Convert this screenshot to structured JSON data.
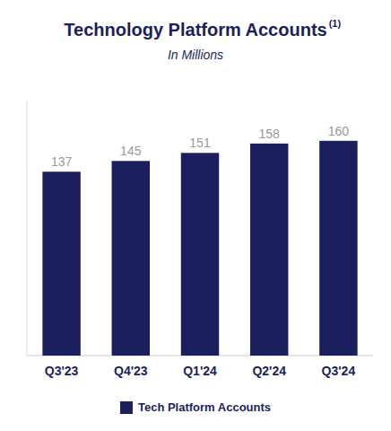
{
  "chart_data": {
    "type": "bar",
    "title": "Technology Platform Accounts",
    "subtitle": "In Millions",
    "annotations": [
      "(1)"
    ],
    "categories": [
      "Q3'23",
      "Q4'23",
      "Q1'24",
      "Q2'24",
      "Q3'24"
    ],
    "series": [
      {
        "name": "Tech Platform Accounts",
        "color": "#1b1f5e",
        "values": [
          137,
          145,
          151,
          158,
          160
        ]
      }
    ],
    "ylim": [
      0,
      190
    ],
    "grid": false,
    "legend": "bottom",
    "data_labels": true,
    "tick_labels": "x"
  }
}
